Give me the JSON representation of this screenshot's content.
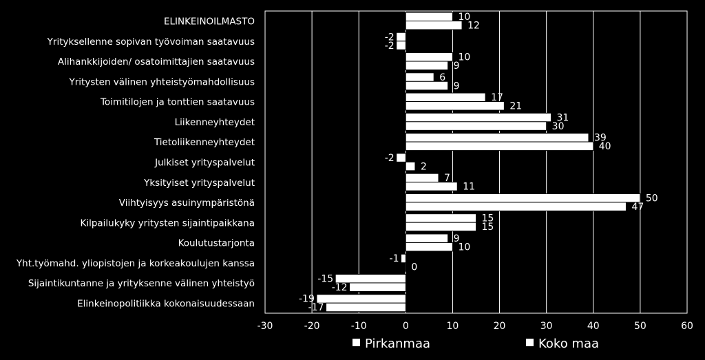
{
  "chart_data": {
    "type": "bar",
    "orientation": "horizontal",
    "categories": [
      "ELINKEINOILMASTO",
      "Yrityksellenne sopivan työvoiman saatavuus",
      "Alihankkijoiden/ osatoimittajien saatavuus",
      "Yritysten välinen yhteistyömahdollisuus",
      "Toimitilojen ja tonttien saatavuus",
      "Liikenneyhteydet",
      "Tietoliikenneyhteydet",
      "Julkiset yrityspalvelut",
      "Yksityiset yrityspalvelut",
      "Viihtyisyys asuinympäristönä",
      "Kilpailukyky yritysten sijaintipaikkana",
      "Koulutustarjonta",
      "Yht.työmahd. yliopistojen ja korkeakoulujen kanssa",
      "Sijaintikuntanne ja yrityksenne välinen yhteistyö",
      "Elinkeinopolitiikka kokonaisuudessaan"
    ],
    "series": [
      {
        "name": "Pirkanmaa",
        "values": [
          10,
          -2,
          10,
          6,
          17,
          31,
          39,
          -2,
          7,
          50,
          15,
          9,
          -1,
          -15,
          -19
        ]
      },
      {
        "name": "Koko maa",
        "values": [
          12,
          -2,
          9,
          9,
          21,
          30,
          40,
          2,
          11,
          47,
          15,
          10,
          0,
          -12,
          -17
        ]
      }
    ],
    "xlim": [
      -30,
      60
    ],
    "xticks": [
      "-30",
      "-20",
      "-10",
      "0",
      "10",
      "20",
      "30",
      "40",
      "50",
      "60"
    ],
    "grid": true,
    "legend_position": "bottom",
    "colors": {
      "background": "#000000",
      "bar": "#ffffff",
      "grid": "#ffffff",
      "text": "#ffffff"
    }
  }
}
